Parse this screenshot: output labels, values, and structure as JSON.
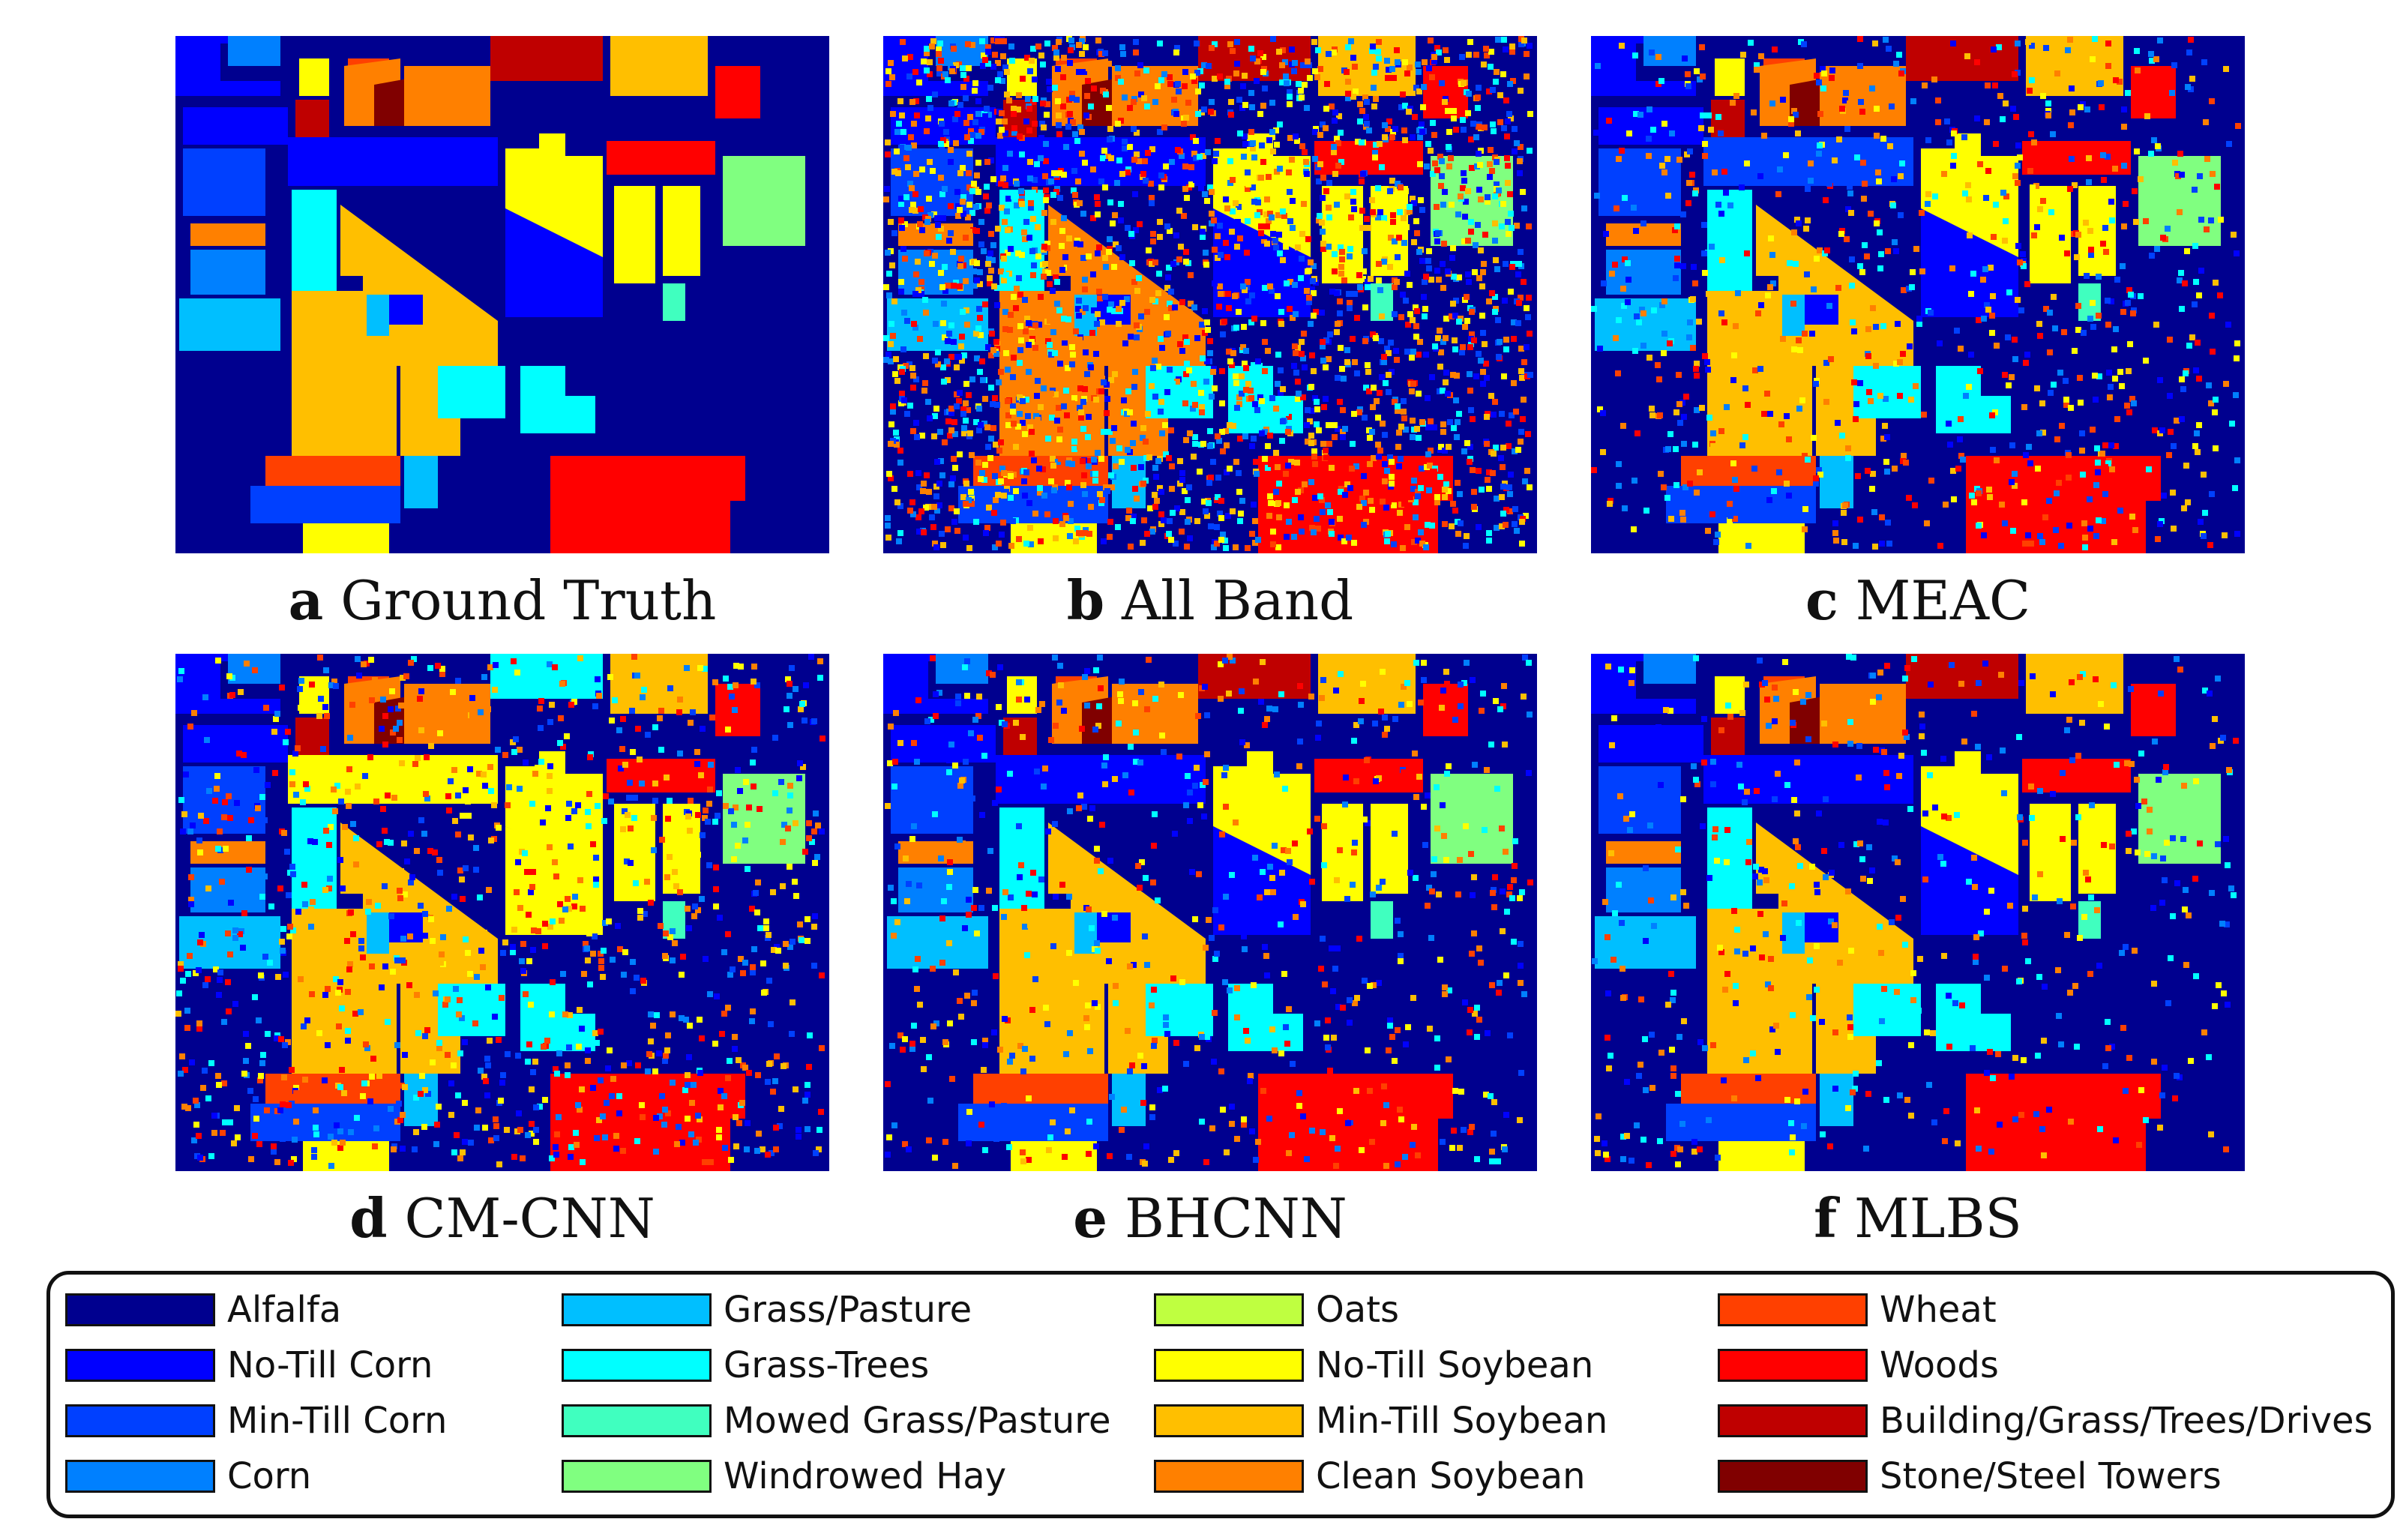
{
  "panels": [
    {
      "letter": "a",
      "title": "Ground Truth"
    },
    {
      "letter": "b",
      "title": "All Band"
    },
    {
      "letter": "c",
      "title": "MEAC"
    },
    {
      "letter": "d",
      "title": "CM-CNN"
    },
    {
      "letter": "e",
      "title": "BHCNN"
    },
    {
      "letter": "f",
      "title": "MLBS"
    }
  ],
  "background_color": "#00008f",
  "legend": [
    {
      "label": "Alfalfa",
      "color": "#00008f"
    },
    {
      "label": "No-Till Corn",
      "color": "#0000ff"
    },
    {
      "label": "Min-Till Corn",
      "color": "#0040ff"
    },
    {
      "label": "Corn",
      "color": "#0080ff"
    },
    {
      "label": "Grass/Pasture",
      "color": "#00bfff"
    },
    {
      "label": "Grass-Trees",
      "color": "#00ffff"
    },
    {
      "label": "Mowed Grass/Pasture",
      "color": "#40ffbf"
    },
    {
      "label": "Windrowed Hay",
      "color": "#80ff80"
    },
    {
      "label": "Oats",
      "color": "#bfff40"
    },
    {
      "label": "No-Till Soybean",
      "color": "#ffff00"
    },
    {
      "label": "Min-Till Soybean",
      "color": "#ffbf00"
    },
    {
      "label": "Clean Soybean",
      "color": "#ff8000"
    },
    {
      "label": "Wheat",
      "color": "#ff4000"
    },
    {
      "label": "Woods",
      "color": "#ff0000"
    },
    {
      "label": "Building/Grass/Trees/Drives",
      "color": "#bf0000"
    },
    {
      "label": "Stone/Steel Towers",
      "color": "#800000"
    }
  ]
}
